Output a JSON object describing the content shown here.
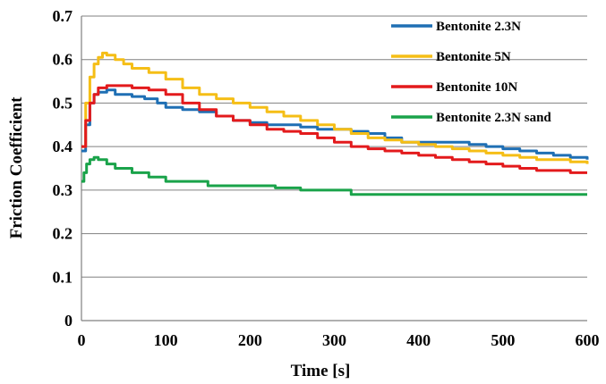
{
  "chart_data": {
    "type": "line",
    "title": "",
    "xlabel": "Time [s]",
    "ylabel": "Friction Coefficient",
    "xlim": [
      0,
      600
    ],
    "ylim": [
      0,
      0.7
    ],
    "xticks": [
      0,
      100,
      200,
      300,
      400,
      500,
      600
    ],
    "yticks": [
      0,
      0.1,
      0.2,
      0.3,
      0.4,
      0.5,
      0.6,
      0.7
    ],
    "xtick_labels": [
      "0",
      "100",
      "200",
      "300",
      "400",
      "500",
      "600"
    ],
    "ytick_labels": [
      "0",
      "0.1",
      "0.2",
      "0.3",
      "0.4",
      "0.5",
      "0.6",
      "0.7"
    ],
    "grid": "horizontal",
    "legend_position": "top-right",
    "series": [
      {
        "name": "Bentonite 2.3N",
        "color": "#1f6fb4",
        "x": [
          0,
          5,
          10,
          15,
          20,
          30,
          40,
          50,
          60,
          75,
          90,
          100,
          120,
          140,
          160,
          180,
          200,
          220,
          240,
          260,
          280,
          300,
          320,
          340,
          360,
          380,
          400,
          420,
          440,
          460,
          480,
          500,
          520,
          540,
          560,
          580,
          600
        ],
        "y": [
          0.39,
          0.45,
          0.5,
          0.52,
          0.525,
          0.53,
          0.52,
          0.52,
          0.515,
          0.51,
          0.5,
          0.49,
          0.485,
          0.48,
          0.47,
          0.46,
          0.455,
          0.45,
          0.45,
          0.445,
          0.44,
          0.44,
          0.435,
          0.43,
          0.42,
          0.41,
          0.41,
          0.41,
          0.41,
          0.405,
          0.4,
          0.395,
          0.39,
          0.385,
          0.38,
          0.375,
          0.37
        ]
      },
      {
        "name": "Bentonite 5N",
        "color": "#f5be16",
        "x": [
          0,
          5,
          10,
          15,
          20,
          25,
          30,
          40,
          50,
          60,
          80,
          100,
          120,
          140,
          160,
          180,
          200,
          220,
          240,
          260,
          280,
          300,
          320,
          340,
          360,
          380,
          400,
          420,
          440,
          460,
          480,
          500,
          520,
          540,
          560,
          580,
          600
        ],
        "y": [
          0.4,
          0.5,
          0.56,
          0.59,
          0.605,
          0.615,
          0.61,
          0.6,
          0.59,
          0.58,
          0.57,
          0.555,
          0.535,
          0.52,
          0.51,
          0.5,
          0.49,
          0.48,
          0.47,
          0.46,
          0.45,
          0.44,
          0.43,
          0.42,
          0.415,
          0.41,
          0.405,
          0.4,
          0.395,
          0.39,
          0.385,
          0.38,
          0.375,
          0.37,
          0.37,
          0.365,
          0.36
        ]
      },
      {
        "name": "Bentonite 10N",
        "color": "#e31a1c",
        "x": [
          0,
          5,
          10,
          15,
          20,
          30,
          40,
          60,
          80,
          100,
          120,
          140,
          160,
          180,
          200,
          220,
          240,
          260,
          280,
          300,
          320,
          340,
          360,
          380,
          400,
          420,
          440,
          460,
          480,
          500,
          520,
          540,
          560,
          580,
          600
        ],
        "y": [
          0.4,
          0.46,
          0.5,
          0.52,
          0.535,
          0.54,
          0.54,
          0.535,
          0.53,
          0.52,
          0.5,
          0.485,
          0.47,
          0.46,
          0.45,
          0.44,
          0.435,
          0.43,
          0.42,
          0.41,
          0.4,
          0.395,
          0.39,
          0.385,
          0.38,
          0.375,
          0.37,
          0.365,
          0.36,
          0.355,
          0.35,
          0.345,
          0.345,
          0.34,
          0.34
        ]
      },
      {
        "name": "Bentonite 2.3N sand",
        "color": "#1aa34a",
        "x": [
          0,
          3,
          6,
          10,
          15,
          20,
          30,
          40,
          60,
          80,
          100,
          120,
          150,
          200,
          230,
          260,
          300,
          320,
          350,
          400,
          450,
          500,
          550,
          600
        ],
        "y": [
          0.32,
          0.34,
          0.36,
          0.37,
          0.375,
          0.37,
          0.36,
          0.35,
          0.34,
          0.33,
          0.32,
          0.32,
          0.31,
          0.31,
          0.305,
          0.3,
          0.3,
          0.29,
          0.29,
          0.29,
          0.29,
          0.29,
          0.29,
          0.29
        ]
      }
    ]
  }
}
